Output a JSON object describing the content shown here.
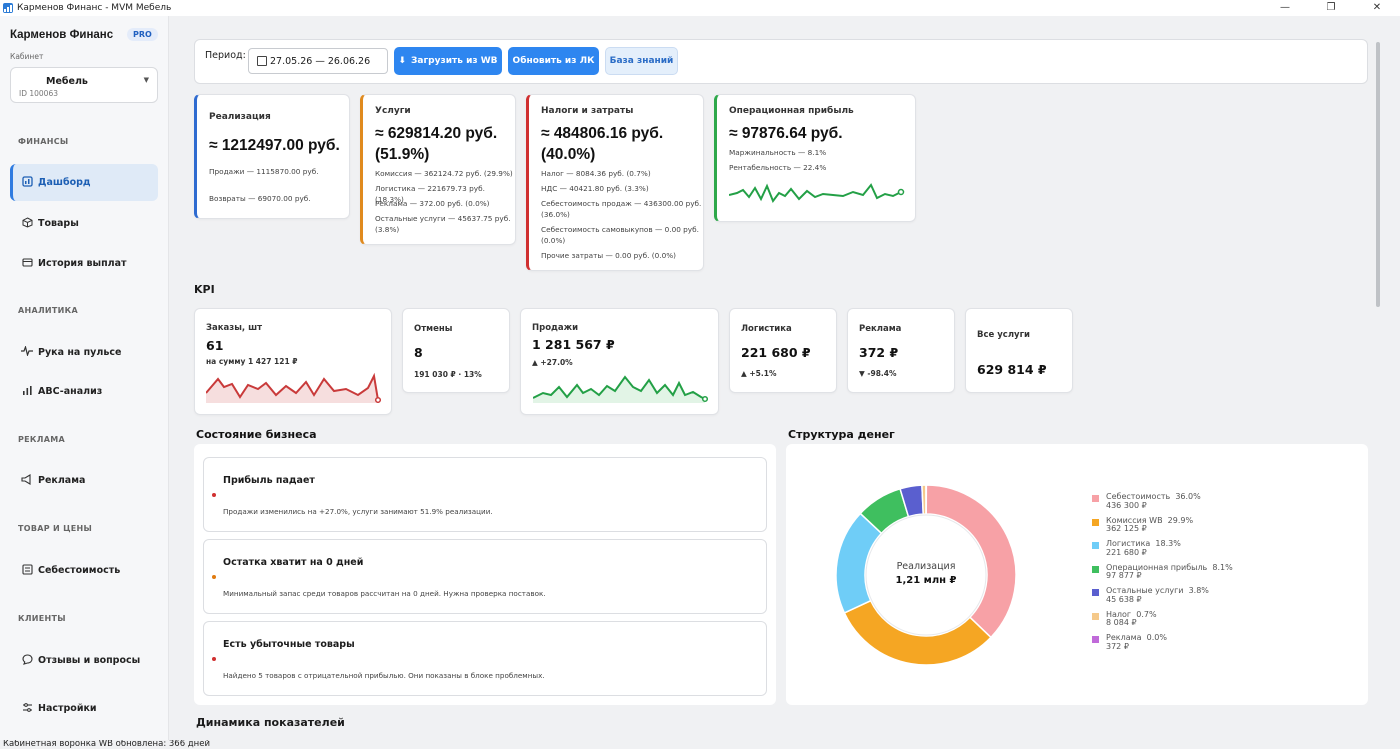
{
  "window": {
    "title": "Карменов Финанс - MVM Мебель",
    "ctrl_min": "—",
    "ctrl_max": "❐",
    "ctrl_close": "✕"
  },
  "sidebar": {
    "brand": "Карменов Финанс",
    "pro": "PRO",
    "cabinet_label": "Кабинет",
    "cabinet_name": "Мебель",
    "cabinet_id": "ID 100063",
    "sections": {
      "finance": "ФИНАНСЫ",
      "analytics": "АНАЛИТИКА",
      "ads": "РЕКЛАМА",
      "goods": "ТОВАР И ЦЕНЫ",
      "clients": "КЛИЕНТЫ"
    },
    "items": {
      "dashboard": "Дашборд",
      "products": "Товары",
      "payouts": "История выплат",
      "pulse": "Рука на пульсе",
      "abc": "ABC-анализ",
      "ads": "Реклама",
      "cost": "Себестоимость",
      "reviews": "Отзывы и вопросы",
      "settings": "Настройки"
    }
  },
  "toolbar": {
    "period_label": "Период:",
    "date_range": "27.05.26 — 26.06.26",
    "load_wb": "Загрузить из WB",
    "refresh_lk": "Обновить из ЛК",
    "kb": "База знаний"
  },
  "cards": {
    "realization": {
      "title": "Реализация",
      "value": "≈ 1212497.00 руб.",
      "l1": "Продажи — 1115870.00 руб.",
      "l2": "Возвраты — 69070.00 руб."
    },
    "services": {
      "title": "Услуги",
      "value": "≈ 629814.20 руб.",
      "value2": "(51.9%)",
      "l1": "Комиссия — 362124.72 руб. (29.9%)",
      "l2": "Логистика — 221679.73 руб. (18.3%)",
      "l3": "Реклама — 372.00 руб. (0.0%)",
      "l4": "Остальные услуги — 45637.75 руб.",
      "l5": "(3.8%)"
    },
    "taxes": {
      "title": "Налоги и затраты",
      "value": "≈ 484806.16 руб.",
      "value2": "(40.0%)",
      "l1": "Налог — 8084.36 руб. (0.7%)",
      "l2": "НДС — 40421.80 руб. (3.3%)",
      "l3": "Себестоимость продаж — 436300.00 руб.",
      "l4": "(36.0%)",
      "l5": "Себестоимость самовыкупов — 0.00 руб.",
      "l6": "(0.0%)",
      "l7": "Прочие затраты — 0.00 руб. (0.0%)"
    },
    "profit": {
      "title": "Операционная прибыль",
      "value": "≈ 97876.64 руб.",
      "l1": "Маржинальность — 8.1%",
      "l2": "Рентабельность — 22.4%"
    }
  },
  "kpi": {
    "title": "KPI",
    "orders": {
      "title": "Заказы, шт",
      "value": "61",
      "sub": "на сумму 1 427 121 ₽"
    },
    "cancels": {
      "title": "Отмены",
      "value": "8",
      "sub": "191 030 ₽ · 13%"
    },
    "sales": {
      "title": "Продажи",
      "value": "1 281 567 ₽",
      "sub": "▲ +27.0%"
    },
    "logistics": {
      "title": "Логистика",
      "value": "221 680 ₽",
      "sub": "▲ +5.1%"
    },
    "ads": {
      "title": "Реклама",
      "value": "372 ₽",
      "sub": "▼ -98.4%"
    },
    "services": {
      "title": "Все услуги",
      "value": "629 814 ₽"
    }
  },
  "business": {
    "title": "Состояние бизнеса",
    "alerts": [
      {
        "title": "Прибыль падает",
        "text": "Продажи изменились на +27.0%, услуги занимают 51.9% реализации.",
        "color": "#d03030"
      },
      {
        "title": "Остатка хватит на 0 дней",
        "text": "Минимальный запас среди товаров рассчитан на 0 дней. Нужна проверка поставок.",
        "color": "#e07b10"
      },
      {
        "title": "Есть убыточные товары",
        "text": "Найдено 5 товаров с отрицательной прибылью. Они показаны в блоке проблемных.",
        "color": "#d03030"
      }
    ]
  },
  "money": {
    "title": "Структура денег",
    "center_label": "Реализация",
    "center_value": "1,21 млн ₽",
    "legend": [
      {
        "name": "Себестоимость",
        "pct": "36.0%",
        "amount": "436 300 ₽",
        "color": "#f7a1a6"
      },
      {
        "name": "Комиссия WB",
        "pct": "29.9%",
        "amount": "362 125 ₽",
        "color": "#f5a623"
      },
      {
        "name": "Логистика",
        "pct": "18.3%",
        "amount": "221 680 ₽",
        "color": "#6fcdf7"
      },
      {
        "name": "Операционная прибыль",
        "pct": "8.1%",
        "amount": "97 877 ₽",
        "color": "#3fbf5f"
      },
      {
        "name": "Остальные услуги",
        "pct": "3.8%",
        "amount": "45 638 ₽",
        "color": "#5a5fcf"
      },
      {
        "name": "Налог",
        "pct": "0.7%",
        "amount": "8 084 ₽",
        "color": "#f5c98a"
      },
      {
        "name": "Реклама",
        "pct": "0.0%",
        "amount": "372 ₽",
        "color": "#c06ad9"
      }
    ]
  },
  "chart_data": [
    {
      "type": "pie",
      "title": "Структура денег",
      "categories": [
        "Себестоимость",
        "Комиссия WB",
        "Логистика",
        "Операционная прибыль",
        "Остальные услуги",
        "Налог",
        "Реклама"
      ],
      "values": [
        36.0,
        29.9,
        18.3,
        8.1,
        3.8,
        0.7,
        0.0
      ]
    }
  ],
  "dynamics_title": "Динамика показателей",
  "status": "Кабинетная воронка WB обновлена: 366 дней",
  "colors": {
    "accent": "#2e86f0",
    "realization": "#2f6bd0",
    "services": "#e08a1e",
    "taxes": "#d03030",
    "profit": "#2ea84a",
    "red_line": "#c93a3a",
    "green_line": "#23a046"
  }
}
